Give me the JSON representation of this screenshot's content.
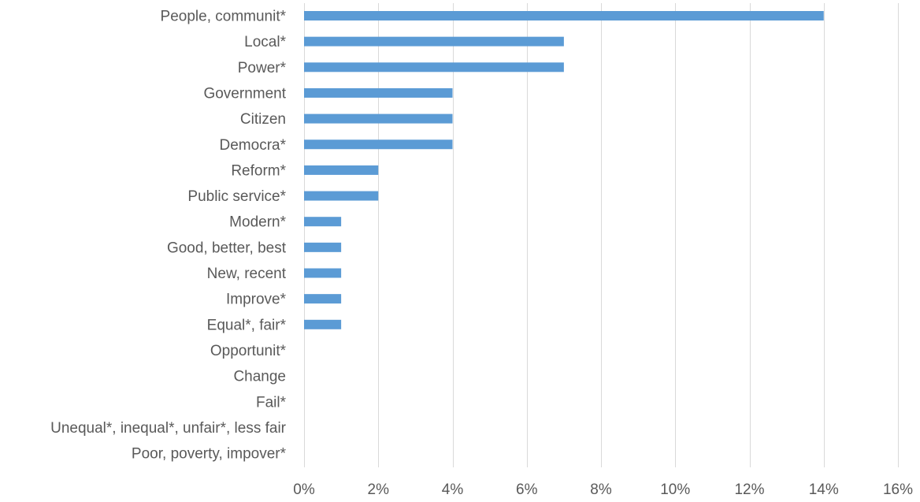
{
  "chart_data": {
    "type": "bar",
    "orientation": "horizontal",
    "categories": [
      "People, communit*",
      "Local*",
      "Power*",
      "Government",
      "Citizen",
      "Democra*",
      "Reform*",
      "Public service*",
      "Modern*",
      "Good, better, best",
      "New, recent",
      "Improve*",
      "Equal*, fair*",
      "Opportunit*",
      "Change",
      "Fail*",
      "Unequal*, inequal*, unfair*, less fair",
      "Poor, poverty, impover*"
    ],
    "values": [
      14,
      7,
      7,
      4,
      4,
      4,
      2,
      2,
      1,
      1,
      1,
      1,
      1,
      0,
      0,
      0,
      0,
      0
    ],
    "value_unit": "%",
    "xlim": [
      0,
      16
    ],
    "x_ticks": [
      0,
      2,
      4,
      6,
      8,
      10,
      12,
      14,
      16
    ],
    "x_tick_labels": [
      "0%",
      "2%",
      "4%",
      "6%",
      "8%",
      "10%",
      "12%",
      "14%",
      "16%"
    ],
    "title": "",
    "xlabel": "",
    "ylabel": "",
    "grid": "vertical",
    "legend": "none",
    "bar_color": "#5b9bd5",
    "grid_color": "#d9d9d9",
    "text_color": "#595959"
  }
}
